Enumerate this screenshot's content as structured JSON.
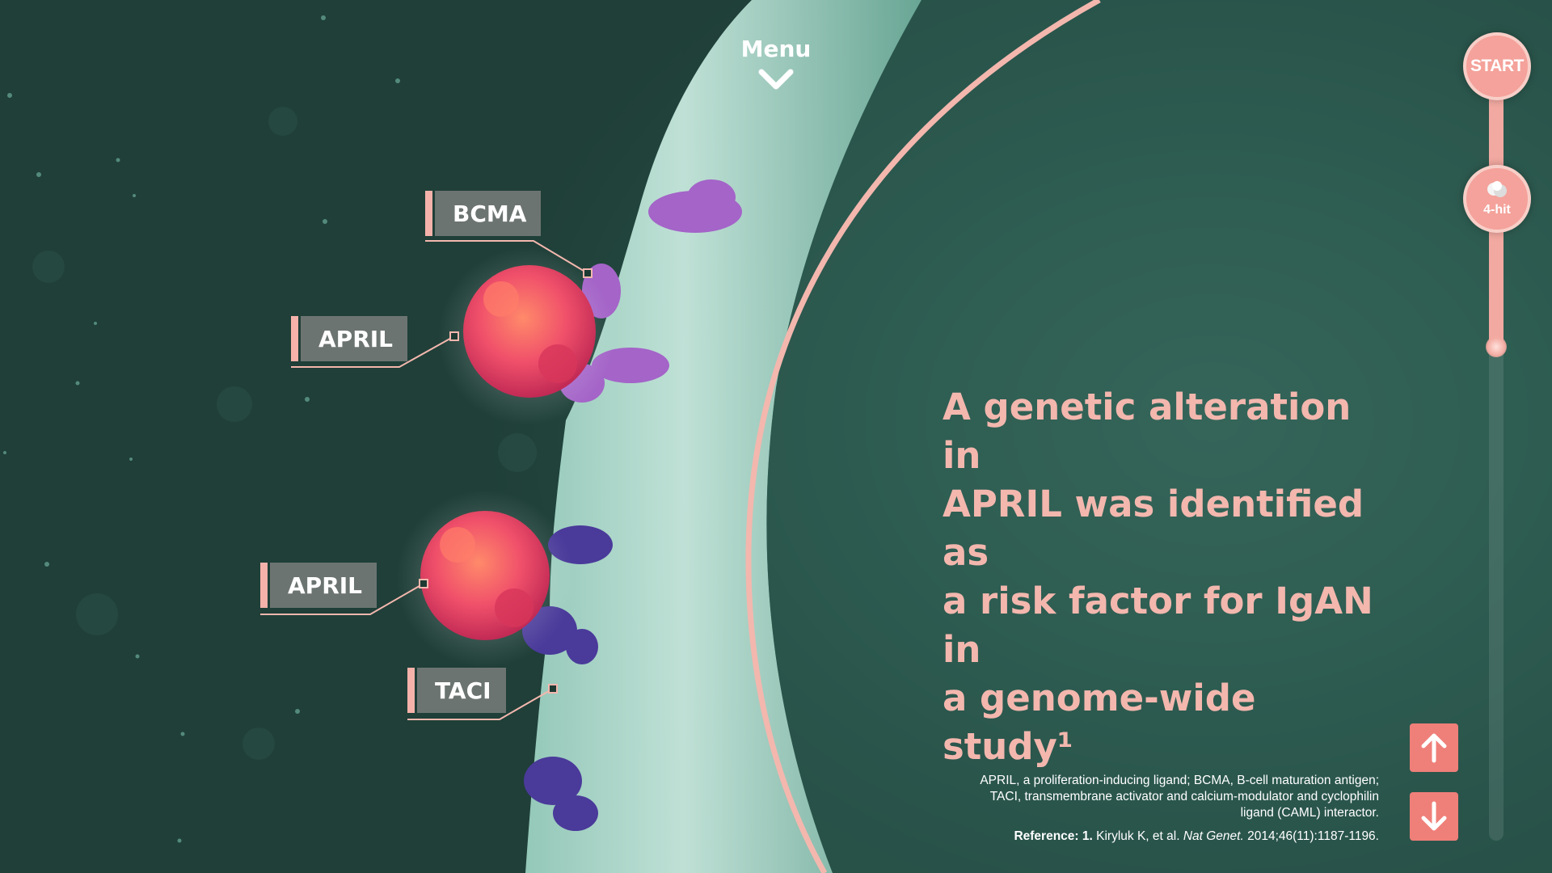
{
  "menu": {
    "label": "Menu"
  },
  "labels": {
    "bcma": "BCMA",
    "april_top": "APRIL",
    "april_bottom": "APRIL",
    "taci": "TACI"
  },
  "headline": {
    "line1": "A genetic alteration in",
    "line2": "APRIL was identified as",
    "line3": "a risk factor for IgAN in",
    "line4": "a genome-wide study¹"
  },
  "footnote": {
    "abbrev_line1": "APRIL, a proliferation-inducing ligand; BCMA, B-cell maturation antigen;",
    "abbrev_line2": "TACI, transmembrane activator and calcium-modulator and cyclophilin",
    "abbrev_line3": "ligand (CAML) interactor.",
    "reference_label": "Reference:",
    "reference_number": "1.",
    "reference_authors": "Kiryluk K, et al.",
    "reference_journal": "Nat Genet.",
    "reference_details": "2014;46(11):1187-1196."
  },
  "progress": {
    "start_label": "START",
    "step_label": "4-hit",
    "fill_fraction": 0.36
  },
  "nav": {
    "up_icon": "arrow-up-icon",
    "down_icon": "arrow-down-icon"
  },
  "colors": {
    "accent_pink": "#f3b7ae",
    "button_coral": "#ef7f79",
    "label_gray": "#6c7471",
    "bcma_purple": "#a464c8",
    "taci_indigo": "#4a3a9a",
    "april_red": "#f0506a"
  }
}
